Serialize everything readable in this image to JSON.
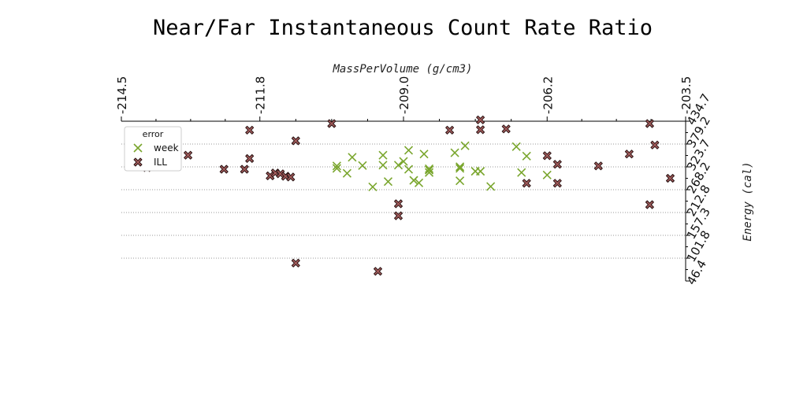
{
  "chart_data": {
    "type": "scatter",
    "title": "Near/Far Instantaneous Count Rate Ratio",
    "xlabel": "MassPerVolume (g/cm3)",
    "ylabel": "Energy (cal)",
    "xlim": [
      -214.5,
      -203.5
    ],
    "ylim": [
      46.4,
      434.7
    ],
    "x_axis_position": "top",
    "y_axis_position": "right",
    "x_ticks": [
      "-214.5",
      "-211.8",
      "-209.0",
      "-206.2",
      "-203.5"
    ],
    "y_ticks": [
      "46.4",
      "101.8",
      "157.3",
      "212.8",
      "268.2",
      "323.7",
      "379.2",
      "434.7"
    ],
    "grid": "horizontal dotted",
    "legend": {
      "title": "error",
      "placement": "top-left"
    },
    "series": [
      {
        "name": "week",
        "color": "#7aa62e",
        "marker": "x",
        "points": [
          [
            -210.3,
            326
          ],
          [
            -210.3,
            320
          ],
          [
            -210.1,
            308
          ],
          [
            -210.0,
            347
          ],
          [
            -209.8,
            327
          ],
          [
            -209.6,
            275
          ],
          [
            -209.4,
            328
          ],
          [
            -209.4,
            352
          ],
          [
            -209.3,
            288
          ],
          [
            -209.1,
            328
          ],
          [
            -209.0,
            337
          ],
          [
            -208.9,
            318
          ],
          [
            -208.9,
            364
          ],
          [
            -208.8,
            291
          ],
          [
            -208.7,
            285
          ],
          [
            -208.6,
            355
          ],
          [
            -208.5,
            316
          ],
          [
            -208.5,
            310
          ],
          [
            -208.5,
            319
          ],
          [
            -208.0,
            358
          ],
          [
            -207.9,
            324
          ],
          [
            -207.9,
            320
          ],
          [
            -207.9,
            290
          ],
          [
            -207.8,
            375
          ],
          [
            -207.6,
            313
          ],
          [
            -207.5,
            313
          ],
          [
            -207.3,
            276
          ],
          [
            -206.8,
            373
          ],
          [
            -206.7,
            310
          ],
          [
            -206.6,
            350
          ],
          [
            -206.2,
            304
          ]
        ]
      },
      {
        "name": "ILL",
        "color": "#a05a5a",
        "marker": "X",
        "points": [
          [
            -214.0,
            322
          ],
          [
            -213.6,
            349
          ],
          [
            -213.6,
            326
          ],
          [
            -213.2,
            352
          ],
          [
            -212.5,
            318
          ],
          [
            -212.1,
            318
          ],
          [
            -212.0,
            344
          ],
          [
            -212.0,
            413
          ],
          [
            -211.6,
            302
          ],
          [
            -211.5,
            309
          ],
          [
            -211.4,
            307
          ],
          [
            -211.3,
            301
          ],
          [
            -211.2,
            299
          ],
          [
            -211.1,
            387
          ],
          [
            -211.1,
            90
          ],
          [
            -210.4,
            429
          ],
          [
            -209.5,
            70
          ],
          [
            -209.1,
            205
          ],
          [
            -209.1,
            234
          ],
          [
            -208.1,
            413
          ],
          [
            -207.5,
            414
          ],
          [
            -207.5,
            438
          ],
          [
            -207.0,
            416
          ],
          [
            -206.6,
            284
          ],
          [
            -206.2,
            351
          ],
          [
            -206.0,
            330
          ],
          [
            -206.0,
            284
          ],
          [
            -205.2,
            326
          ],
          [
            -204.6,
            355
          ],
          [
            -204.2,
            429
          ],
          [
            -204.2,
            232
          ],
          [
            -204.1,
            377
          ],
          [
            -203.8,
            296
          ]
        ]
      }
    ]
  }
}
